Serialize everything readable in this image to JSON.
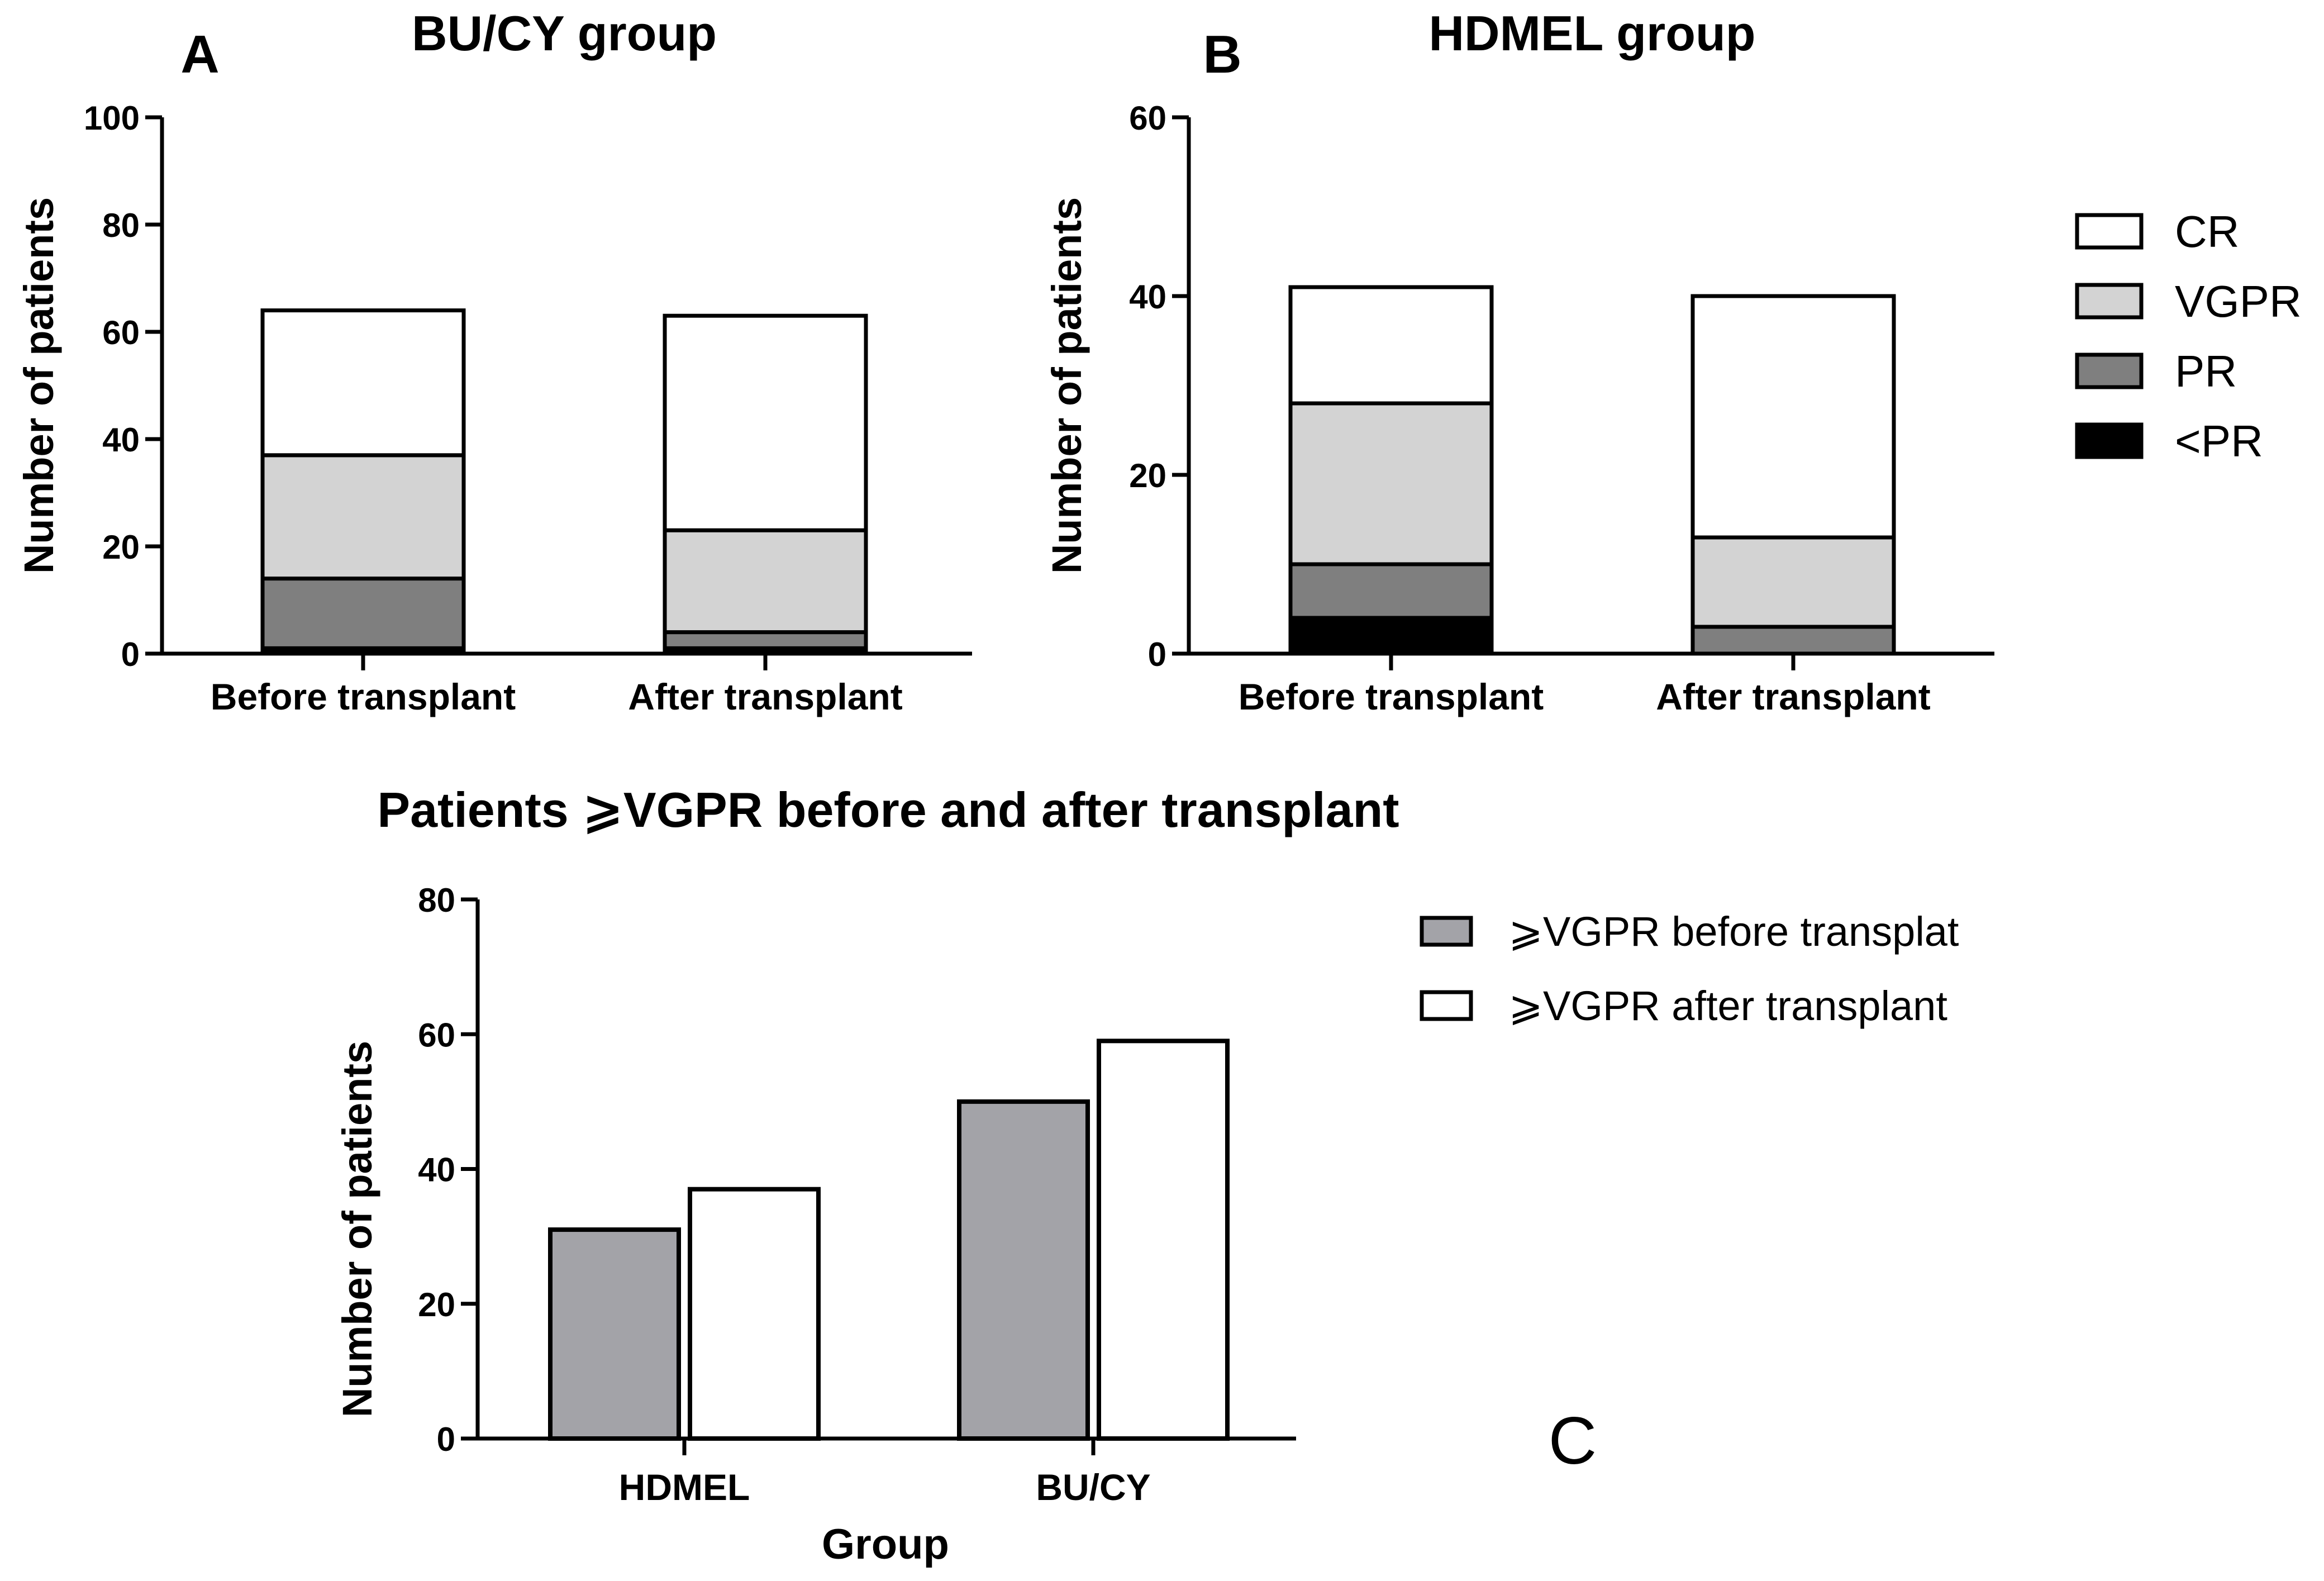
{
  "colors": {
    "CR": "#ffffff",
    "VGPR": "#d3d3d3",
    "PR": "#7f7f7f",
    "lt_PR": "#000000",
    "before": "#a3a3a8",
    "after": "#ffffff",
    "stroke": "#000000"
  },
  "legend_top": {
    "items": [
      {
        "key": "CR",
        "label": "CR"
      },
      {
        "key": "VGPR",
        "label": "VGPR"
      },
      {
        "key": "PR",
        "label": "PR"
      },
      {
        "key": "lt_PR",
        "label": "<PR"
      }
    ]
  },
  "legend_bottom": {
    "items": [
      {
        "key": "before",
        "label": "⩾VGPR before transplat"
      },
      {
        "key": "after",
        "label": "⩾VGPR after transplant"
      }
    ]
  },
  "chart_data": [
    {
      "id": "A",
      "panel_label": "A",
      "type": "bar",
      "stacked": true,
      "title": "BU/CY group",
      "xlabel": "",
      "ylabel": "Number of patients",
      "ylim": [
        0,
        100
      ],
      "yticks": [
        0,
        20,
        40,
        60,
        80,
        100
      ],
      "categories": [
        "Before transplant",
        "After transplant"
      ],
      "series": [
        {
          "name": "<PR",
          "key": "lt_PR",
          "values": [
            1,
            1
          ]
        },
        {
          "name": "PR",
          "key": "PR",
          "values": [
            13,
            3
          ]
        },
        {
          "name": "VGPR",
          "key": "VGPR",
          "values": [
            23,
            19
          ]
        },
        {
          "name": "CR",
          "key": "CR",
          "values": [
            27,
            40
          ]
        }
      ]
    },
    {
      "id": "B",
      "panel_label": "B",
      "type": "bar",
      "stacked": true,
      "title": "HDMEL group",
      "xlabel": "",
      "ylabel": "Number of patients",
      "ylim": [
        0,
        60
      ],
      "yticks": [
        0,
        20,
        40,
        60
      ],
      "categories": [
        "Before transplant",
        "After transplant"
      ],
      "series": [
        {
          "name": "<PR",
          "key": "lt_PR",
          "values": [
            4,
            0
          ]
        },
        {
          "name": "PR",
          "key": "PR",
          "values": [
            6,
            3
          ]
        },
        {
          "name": "VGPR",
          "key": "VGPR",
          "values": [
            18,
            10
          ]
        },
        {
          "name": "CR",
          "key": "CR",
          "values": [
            13,
            27
          ]
        }
      ]
    },
    {
      "id": "C",
      "panel_label": "C",
      "type": "bar",
      "stacked": false,
      "title": "Patients ⩾VGPR before and after transplant",
      "xlabel": "Group",
      "ylabel": "Number of patients",
      "ylim": [
        0,
        80
      ],
      "yticks": [
        0,
        20,
        40,
        60,
        80
      ],
      "categories": [
        "HDMEL",
        "BU/CY"
      ],
      "series": [
        {
          "name": "⩾VGPR before transplat",
          "key": "before",
          "values": [
            31,
            50
          ]
        },
        {
          "name": "⩾VGPR after transplant",
          "key": "after",
          "values": [
            37,
            59
          ]
        }
      ]
    }
  ]
}
